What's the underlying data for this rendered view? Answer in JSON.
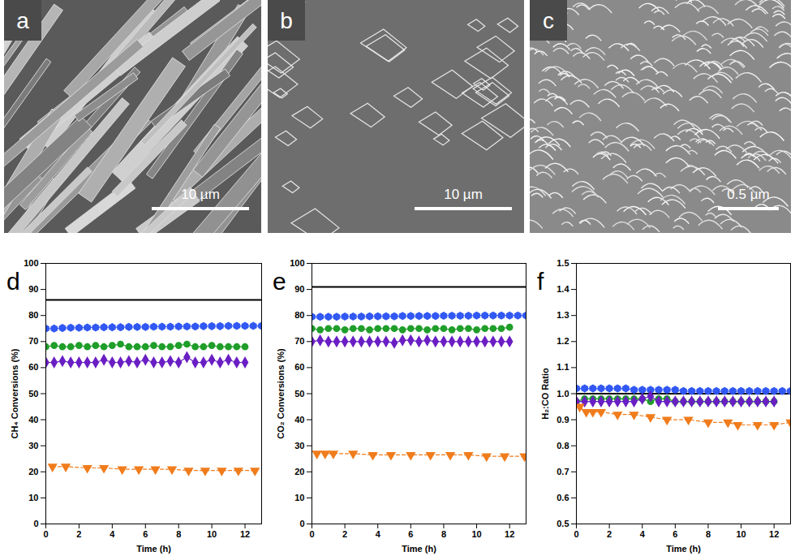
{
  "images": [
    {
      "label": "a",
      "scale_bar": "10 µm"
    },
    {
      "label": "b",
      "scale_bar": "10 µm"
    },
    {
      "label": "c",
      "scale_bar": "0.5 µm"
    }
  ],
  "chart_data": [
    {
      "type": "line",
      "title": "d",
      "x_label": "Time (h)",
      "y_label": "CH₄ Conversions (%)",
      "xlim": [
        0,
        13
      ],
      "xticks": [
        0,
        2,
        4,
        6,
        8,
        10,
        12
      ],
      "ylim": [
        0,
        100
      ],
      "yticks": [
        0,
        10,
        20,
        30,
        40,
        50,
        60,
        70,
        80,
        90,
        100
      ],
      "grid": false,
      "series": [
        {
          "color": "#000000",
          "marker": "none",
          "line_style": "solid",
          "x": [
            0,
            13
          ],
          "values": [
            86,
            86
          ]
        },
        {
          "color": "#3158f2",
          "marker": "hexagon",
          "line_style": "solid",
          "x": [
            0,
            0.5,
            1,
            1.5,
            2,
            2.5,
            3,
            3.5,
            4,
            4.5,
            5,
            5.5,
            6,
            6.5,
            7,
            7.5,
            8,
            8.5,
            9,
            9.5,
            10,
            10.5,
            11,
            11.5,
            12,
            12.5,
            13
          ],
          "values": [
            75,
            75,
            75.2,
            75.3,
            75.3,
            75.4,
            75.4,
            75.5,
            75.5,
            75.5,
            75.6,
            75.6,
            75.6,
            75.7,
            75.7,
            75.7,
            75.8,
            75.8,
            75.8,
            75.9,
            75.9,
            75.9,
            76,
            76,
            76,
            76,
            76
          ]
        },
        {
          "color": "#1f9e2a",
          "marker": "circle",
          "line_style": "solid",
          "x": [
            0,
            0.5,
            1,
            1.5,
            2,
            2.5,
            3,
            3.5,
            4,
            4.5,
            5,
            5.5,
            6,
            6.5,
            7,
            7.5,
            8,
            8.5,
            9,
            9.5,
            10,
            10.5,
            11,
            11.5,
            12
          ],
          "values": [
            68,
            68.5,
            68,
            68,
            68.5,
            68,
            68.5,
            68,
            68.5,
            69,
            68,
            68,
            68,
            68.5,
            68,
            68,
            68.5,
            69,
            68,
            68,
            68.5,
            68,
            68,
            68,
            68
          ]
        },
        {
          "color": "#6a1fc4",
          "marker": "diamond",
          "line_style": "solid",
          "x": [
            0,
            0.5,
            1,
            1.5,
            2,
            2.5,
            3,
            3.5,
            4,
            4.5,
            5,
            5.5,
            6,
            6.5,
            7,
            7.5,
            8,
            8.5,
            9,
            9.5,
            10,
            10.5,
            11,
            11.5,
            12
          ],
          "values": [
            62,
            62,
            62.5,
            62,
            62,
            62,
            62,
            63,
            62,
            62,
            62.5,
            62,
            63,
            62,
            62,
            62.5,
            62,
            64,
            62,
            62,
            63,
            62,
            63,
            62,
            62
          ]
        },
        {
          "color": "#f07c1c",
          "marker": "triangle-down",
          "line_style": "dashed",
          "x": [
            0.4,
            1.2,
            2.5,
            3.5,
            4.6,
            5.6,
            6.6,
            7.6,
            8.6,
            9.6,
            10.6,
            11.6,
            12.6
          ],
          "values": [
            22,
            22,
            21.5,
            21.5,
            21,
            21,
            21,
            21,
            20.5,
            20.5,
            20.5,
            20.5,
            20.5
          ]
        }
      ]
    },
    {
      "type": "line",
      "title": "e",
      "x_label": "Time (h)",
      "y_label": "CO₂ Conversions (%)",
      "xlim": [
        0,
        13
      ],
      "xticks": [
        0,
        2,
        4,
        6,
        8,
        10,
        12
      ],
      "ylim": [
        0,
        100
      ],
      "yticks": [
        0,
        10,
        20,
        30,
        40,
        50,
        60,
        70,
        80,
        90,
        100
      ],
      "grid": false,
      "series": [
        {
          "color": "#000000",
          "marker": "none",
          "line_style": "solid",
          "x": [
            0,
            13
          ],
          "values": [
            91,
            91
          ]
        },
        {
          "color": "#3158f2",
          "marker": "hexagon",
          "line_style": "solid",
          "x": [
            0,
            0.5,
            1,
            1.5,
            2,
            2.5,
            3,
            3.5,
            4,
            4.5,
            5,
            5.5,
            6,
            6.5,
            7,
            7.5,
            8,
            8.5,
            9,
            9.5,
            10,
            10.5,
            11,
            11.5,
            12,
            12.5,
            13
          ],
          "values": [
            79.5,
            79.5,
            79.5,
            79.5,
            79.6,
            79.6,
            79.6,
            79.7,
            79.7,
            79.7,
            79.7,
            79.8,
            79.8,
            79.8,
            79.8,
            79.8,
            79.9,
            79.9,
            79.9,
            79.9,
            80,
            80,
            80,
            80,
            80,
            80,
            80
          ]
        },
        {
          "color": "#1f9e2a",
          "marker": "circle",
          "line_style": "solid",
          "x": [
            0,
            0.5,
            1,
            1.5,
            2,
            2.5,
            3,
            3.5,
            4,
            4.5,
            5,
            5.5,
            6,
            6.5,
            7,
            7.5,
            8,
            8.5,
            9,
            9.5,
            10,
            10.5,
            11,
            11.5,
            12
          ],
          "values": [
            75,
            74.5,
            75,
            75,
            74.5,
            75,
            75,
            74.5,
            75,
            75,
            75,
            74.5,
            75,
            75,
            74.5,
            75,
            75,
            74.5,
            75,
            75,
            74.5,
            75,
            75,
            75,
            75.5
          ]
        },
        {
          "color": "#6a1fc4",
          "marker": "diamond",
          "line_style": "solid",
          "x": [
            0,
            0.5,
            1,
            1.5,
            2,
            2.5,
            3,
            3.5,
            4,
            4.5,
            5,
            5.5,
            6,
            6.5,
            7,
            7.5,
            8,
            8.5,
            9,
            9.5,
            10,
            10.5,
            11,
            11.5,
            12
          ],
          "values": [
            70,
            70.5,
            70,
            70,
            70,
            70,
            70,
            70,
            70,
            70,
            69.5,
            70.5,
            70.5,
            70,
            70.5,
            70,
            70,
            70,
            70,
            70,
            70,
            70,
            70,
            70,
            70
          ]
        },
        {
          "color": "#f07c1c",
          "marker": "triangle-down",
          "line_style": "dashed",
          "x": [
            0.3,
            0.8,
            1.3,
            2.5,
            3.7,
            4.8,
            6,
            7.2,
            8.4,
            9.5,
            10.6,
            11.7,
            12.9
          ],
          "values": [
            27,
            27,
            27,
            27,
            26.5,
            26.5,
            26.5,
            26.5,
            26.5,
            26.5,
            26,
            26,
            26
          ]
        }
      ]
    },
    {
      "type": "line",
      "title": "f",
      "x_label": "Time (h)",
      "y_label": "H₂:CO Ratio",
      "xlim": [
        0,
        13
      ],
      "xticks": [
        0,
        2,
        4,
        6,
        8,
        10,
        12
      ],
      "ylim": [
        0.5,
        1.5
      ],
      "yticks": [
        0.5,
        0.6,
        0.7,
        0.8,
        0.9,
        {
          "value": 1,
          "label": "1.0"
        },
        1.1,
        1.2,
        1.3,
        1.4,
        1.5
      ],
      "grid": false,
      "series": [
        {
          "color": "#000000",
          "marker": "none",
          "line_style": "solid",
          "x": [
            0,
            13
          ],
          "values": [
            1,
            1
          ]
        },
        {
          "color": "#3158f2",
          "marker": "hexagon",
          "line_style": "solid",
          "x": [
            0,
            0.5,
            1,
            1.5,
            2,
            2.5,
            3,
            3.5,
            4,
            4.5,
            5,
            5.5,
            6,
            6.5,
            7,
            7.5,
            8,
            8.5,
            9,
            9.5,
            10,
            10.5,
            11,
            11.5,
            12,
            12.5,
            13
          ],
          "values": [
            1.02,
            1.02,
            1.02,
            1.02,
            1.02,
            1.02,
            1.02,
            1.015,
            1.015,
            1.015,
            1.015,
            1.015,
            1.015,
            1.01,
            1.01,
            1.01,
            1.01,
            1.01,
            1.01,
            1.01,
            1.01,
            1.01,
            1.01,
            1.01,
            1.01,
            1.01,
            1.01
          ]
        },
        {
          "color": "#1f9e2a",
          "marker": "circle",
          "line_style": "solid",
          "x": [
            0,
            0.5,
            1,
            1.5,
            2,
            2.5,
            3,
            3.5,
            4,
            4.5,
            5,
            5.5,
            6,
            6.5,
            7,
            7.5,
            8,
            8.5,
            9,
            9.5,
            10,
            10.5,
            11,
            11.5,
            12
          ],
          "values": [
            0.97,
            0.98,
            0.98,
            0.98,
            0.98,
            0.98,
            0.98,
            0.98,
            0.98,
            0.97,
            0.98,
            0.98,
            0.97,
            0.97,
            0.97,
            0.97,
            0.97,
            0.97,
            0.97,
            0.97,
            0.97,
            0.97,
            0.97,
            0.97,
            0.97
          ]
        },
        {
          "color": "#6a1fc4",
          "marker": "diamond",
          "line_style": "solid",
          "x": [
            0,
            0.5,
            1,
            1.5,
            2,
            2.5,
            3,
            3.5,
            4,
            4.5,
            5,
            5.5,
            6,
            6.5,
            7,
            7.5,
            8,
            8.5,
            9,
            9.5,
            10,
            10.5,
            11,
            11.5,
            12
          ],
          "values": [
            0.97,
            0.97,
            0.97,
            0.97,
            0.97,
            0.97,
            0.97,
            0.97,
            0.98,
            0.99,
            0.97,
            0.97,
            0.97,
            0.97,
            0.97,
            0.97,
            0.97,
            0.97,
            0.97,
            0.97,
            0.97,
            0.97,
            0.97,
            0.97,
            0.97
          ]
        },
        {
          "color": "#f07c1c",
          "marker": "triangle-down",
          "line_style": "dashed",
          "x": [
            0.2,
            0.6,
            1,
            1.5,
            2.5,
            3.5,
            4.5,
            5.5,
            6.8,
            8,
            9.2,
            9.8,
            11,
            12,
            13
          ],
          "values": [
            0.95,
            0.93,
            0.93,
            0.93,
            0.92,
            0.92,
            0.91,
            0.9,
            0.9,
            0.89,
            0.89,
            0.88,
            0.88,
            0.88,
            0.89
          ]
        }
      ]
    }
  ]
}
